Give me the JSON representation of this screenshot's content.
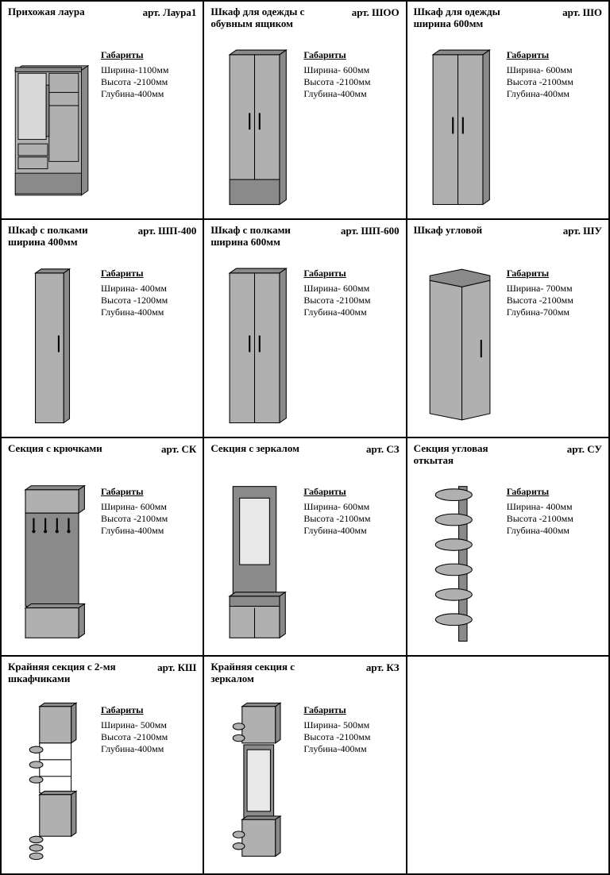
{
  "labels": {
    "dims_heading": "Габариты",
    "art_prefix": "арт."
  },
  "style": {
    "cell_border": "#000000",
    "bg": "#ffffff",
    "font_family": "Times New Roman, serif",
    "name_fontsize": 13,
    "info_fontsize": 12,
    "svg_fill": "#b0b0b0",
    "svg_fill_dark": "#8a8a8a",
    "svg_stroke": "#000000"
  },
  "products": [
    {
      "name": "Прихожая лаура",
      "article": "Лаура1",
      "dims": [
        "Ширина-1100мм",
        "Высота -2100мм",
        "Глубина-400мм"
      ],
      "svg": "laura"
    },
    {
      "name": "Шкаф для одежды с обувным ящиком",
      "article": "ШОО",
      "dims": [
        "Ширина- 600мм",
        "Высота -2100мм",
        "Глубина-400мм"
      ],
      "svg": "wardrobe2_drawer"
    },
    {
      "name": "Шкаф для одежды ширина 600мм",
      "article": "ШО",
      "dims": [
        "Ширина- 600мм",
        "Высота -2100мм",
        "Глубина-400мм"
      ],
      "svg": "wardrobe2"
    },
    {
      "name": "Шкаф с полками ширина 400мм",
      "article": "ШП-400",
      "dims": [
        "Ширина- 400мм",
        "Высота -1200мм",
        "Глубина-400мм"
      ],
      "svg": "narrow_tall"
    },
    {
      "name": "Шкаф с полками ширина 600мм",
      "article": "ШП-600",
      "dims": [
        "Ширина- 600мм",
        "Высота -2100мм",
        "Глубина-400мм"
      ],
      "svg": "wardrobe2"
    },
    {
      "name": "Шкаф угловой",
      "article": "ШУ",
      "dims": [
        "Ширина- 700мм",
        "Высота -2100мм",
        "Глубина-700мм"
      ],
      "svg": "corner"
    },
    {
      "name": "Секция с крючками",
      "article": "СК",
      "dims": [
        "Ширина- 600мм",
        "Высота -2100мм",
        "Глубина-400мм"
      ],
      "svg": "hooks"
    },
    {
      "name": "Секция с зеркалом",
      "article": "СЗ",
      "dims": [
        "Ширина- 600мм",
        "Высота -2100мм",
        "Глубина-400мм"
      ],
      "svg": "mirror"
    },
    {
      "name": "Секция угловая откытая",
      "article": "СУ",
      "dims": [
        "Ширина- 400мм",
        "Высота -2100мм",
        "Глубина-400мм"
      ],
      "svg": "open_shelves"
    },
    {
      "name": "Крайняя секция с 2-мя шкафчиками",
      "article": "КШ",
      "dims": [
        "Ширина- 500мм",
        "Высота -2100мм",
        "Глубина-400мм"
      ],
      "svg": "end_2cab"
    },
    {
      "name": "Крайняя секция с зеркалом",
      "article": "КЗ",
      "dims": [
        "Ширина- 500мм",
        "Высота -2100мм",
        "Глубина-400мм"
      ],
      "svg": "end_mirror"
    },
    {
      "empty": true
    }
  ]
}
